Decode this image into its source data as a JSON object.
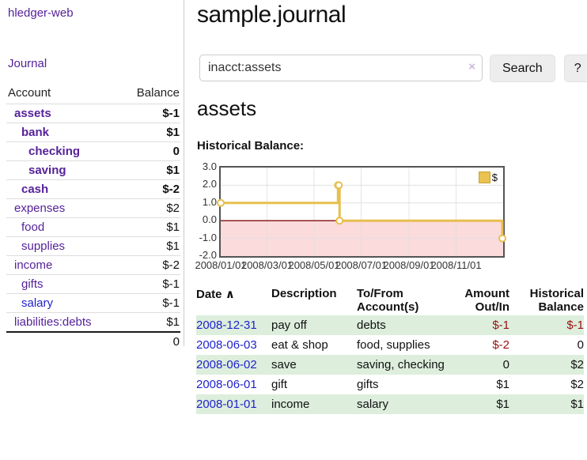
{
  "app": {
    "brand": "hledger-web",
    "nav_journal": "Journal"
  },
  "sidebar": {
    "headers": {
      "account": "Account",
      "balance": "Balance"
    },
    "accounts": [
      {
        "name": "assets",
        "level": 0,
        "balance": "$-1",
        "bold": true,
        "neg": "strong",
        "link_color": "purple"
      },
      {
        "name": "bank",
        "level": 1,
        "balance": "$1",
        "bold": true,
        "neg": "none",
        "link_color": "purple"
      },
      {
        "name": "checking",
        "level": 2,
        "balance": "0",
        "bold": true,
        "neg": "none",
        "link_color": "purple"
      },
      {
        "name": "saving",
        "level": 2,
        "balance": "$1",
        "bold": true,
        "neg": "none",
        "link_color": "purple"
      },
      {
        "name": "cash",
        "level": 1,
        "balance": "$-2",
        "bold": true,
        "neg": "strong",
        "link_color": "purple"
      },
      {
        "name": "expenses",
        "level": 0,
        "balance": "$2",
        "bold": false,
        "neg": "none",
        "link_color": "purple"
      },
      {
        "name": "food",
        "level": 1,
        "balance": "$1",
        "bold": false,
        "neg": "none",
        "link_color": "purple"
      },
      {
        "name": "supplies",
        "level": 1,
        "balance": "$1",
        "bold": false,
        "neg": "none",
        "link_color": "purple"
      },
      {
        "name": "income",
        "level": 0,
        "balance": "$-2",
        "bold": false,
        "neg": "soft",
        "link_color": "purple"
      },
      {
        "name": "gifts",
        "level": 1,
        "balance": "$-1",
        "bold": false,
        "neg": "soft",
        "link_color": "purple"
      },
      {
        "name": "salary",
        "level": 1,
        "balance": "$-1",
        "bold": false,
        "neg": "soft",
        "link_color": "blue"
      },
      {
        "name": "liabilities:debts",
        "level": 0,
        "balance": "$1",
        "bold": false,
        "neg": "none",
        "link_color": "purple"
      }
    ],
    "total": "0"
  },
  "header": {
    "title": "sample.journal"
  },
  "search": {
    "value": "inacct:assets",
    "clear_icon": "×",
    "button_label": "Search",
    "help_label": "?"
  },
  "account_page": {
    "title": "assets",
    "chart_label": "Historical Balance:"
  },
  "chart_data": {
    "type": "line",
    "title": "Historical Balance",
    "step": true,
    "legend": [
      {
        "label": "$",
        "color": "#eac24f"
      }
    ],
    "series": [
      {
        "name": "$",
        "points": [
          {
            "date": "2008-01-01",
            "day": 0,
            "value": 1
          },
          {
            "date": "2008-06-01",
            "day": 152,
            "value": 2
          },
          {
            "date": "2008-06-02",
            "day": 153,
            "value": 2
          },
          {
            "date": "2008-06-03",
            "day": 154,
            "value": 0
          },
          {
            "date": "2008-12-31",
            "day": 365,
            "value": -1
          }
        ]
      }
    ],
    "ylim": [
      -2,
      3
    ],
    "x_range_days": 366,
    "yticks": [
      {
        "label": "3.0",
        "value": 3
      },
      {
        "label": "2.0",
        "value": 2
      },
      {
        "label": "1.0",
        "value": 1
      },
      {
        "label": "0.0",
        "value": 0
      },
      {
        "label": "-1.0",
        "value": -1
      },
      {
        "label": "-2.0",
        "value": -2
      }
    ],
    "xticks": [
      {
        "label": "2008/01/01",
        "day": 0
      },
      {
        "label": "2008/03/01",
        "day": 60
      },
      {
        "label": "2008/05/01",
        "day": 121
      },
      {
        "label": "2008/07/01",
        "day": 182
      },
      {
        "label": "2008/09/01",
        "day": 244
      },
      {
        "label": "2008/11/01",
        "day": 305
      }
    ],
    "colors": {
      "line": "#e7bf4e",
      "marker_fill": "#ffffff",
      "negative_fill": "#fbdbdb",
      "zero_line": "#8b1d1d",
      "grid": "#e0e0e0",
      "border": "#545454"
    }
  },
  "register": {
    "headers": {
      "date": "Date",
      "sort_icon": "∧",
      "description": "Description",
      "to_from": "To/From Account(s)",
      "amount": "Amount Out/In",
      "balance": "Historical Balance"
    },
    "rows": [
      {
        "date": "2008-12-31",
        "description": "pay off",
        "to_from": "debts",
        "amount": "$-1",
        "amount_neg": true,
        "balance": "$-1",
        "balance_neg": true,
        "stripe": true
      },
      {
        "date": "2008-06-03",
        "description": "eat & shop",
        "to_from": "food, supplies",
        "amount": "$-2",
        "amount_neg": true,
        "balance": "0",
        "balance_neg": false,
        "stripe": false
      },
      {
        "date": "2008-06-02",
        "description": "save",
        "to_from": "saving, checking",
        "amount": "0",
        "amount_neg": false,
        "balance": "$2",
        "balance_neg": false,
        "stripe": true
      },
      {
        "date": "2008-06-01",
        "description": "gift",
        "to_from": "gifts",
        "amount": "$1",
        "amount_neg": false,
        "balance": "$2",
        "balance_neg": false,
        "stripe": false
      },
      {
        "date": "2008-01-01",
        "description": "income",
        "to_from": "salary",
        "amount": "$1",
        "amount_neg": false,
        "balance": "$1",
        "balance_neg": false,
        "stripe": true
      }
    ]
  }
}
